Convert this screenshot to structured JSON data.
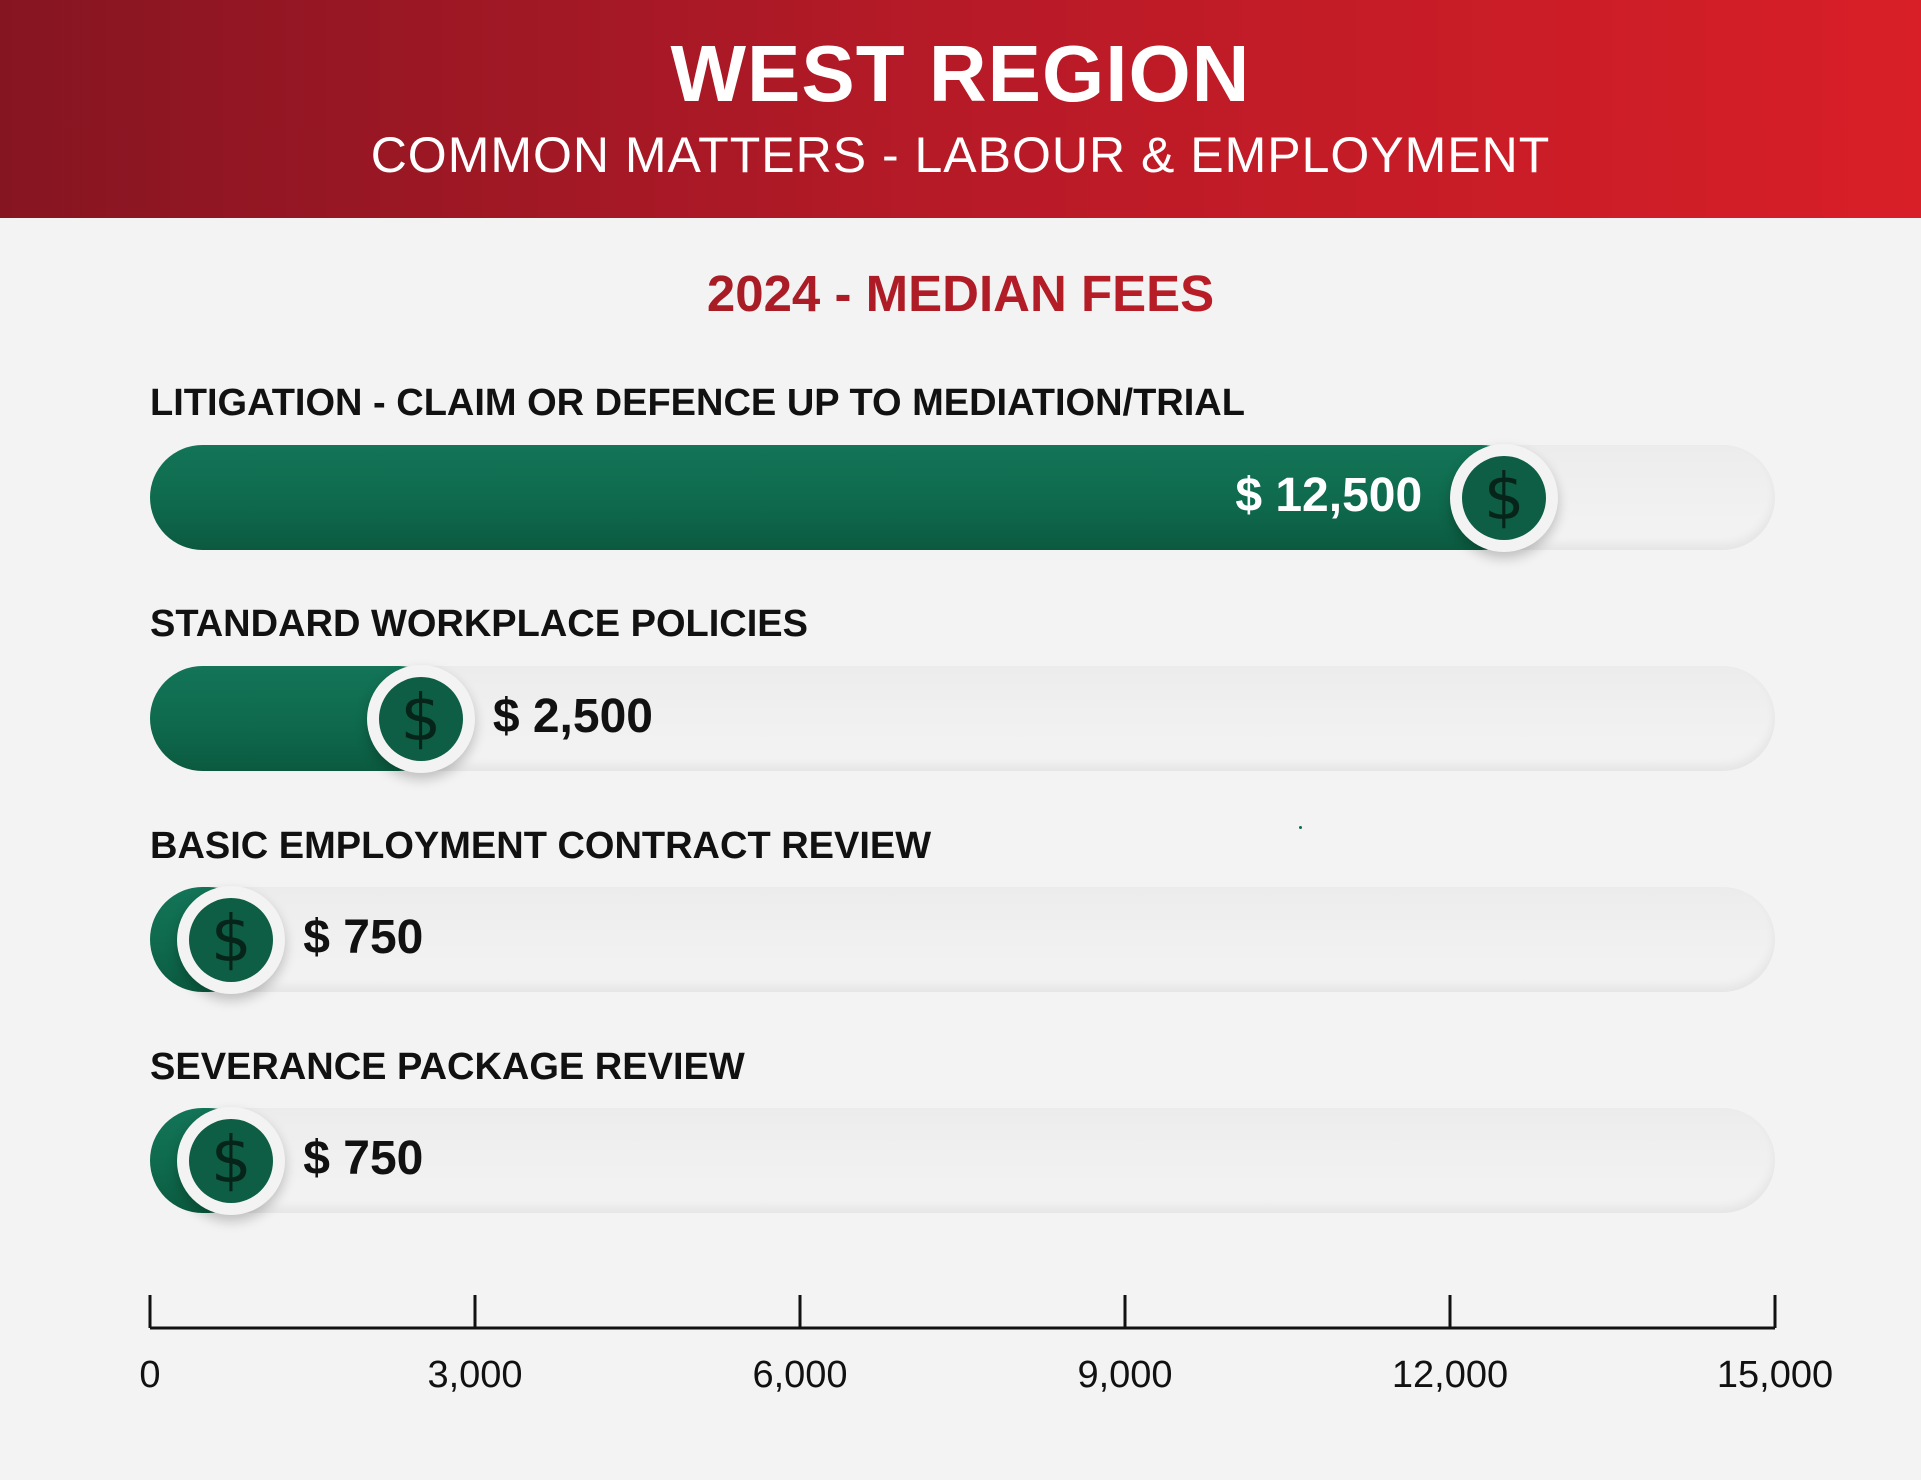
{
  "header": {
    "title": "WEST REGION",
    "subtitle": "COMMON MATTERS - LABOUR & EMPLOYMENT"
  },
  "section_title": "2024 - MEDIAN FEES",
  "colors": {
    "header_start": "#861522",
    "header_end": "#d81f27",
    "bar_green": "#0f6a4d",
    "coin_green": "#0d5e44",
    "background": "#f3f3f3"
  },
  "icons": {
    "bar_end": "dollar-coin-icon"
  },
  "chart_data": {
    "type": "bar",
    "orientation": "horizontal",
    "categories": [
      "LITIGATION - CLAIM OR DEFENCE UP TO MEDIATION/TRIAL",
      "STANDARD WORKPLACE POLICIES",
      "BASIC EMPLOYMENT CONTRACT REVIEW",
      "SEVERANCE PACKAGE REVIEW"
    ],
    "values": [
      12500,
      2500,
      750,
      750
    ],
    "value_labels": [
      "$ 12,500",
      "$ 2,500",
      "$ 750",
      "$ 750"
    ],
    "title": "2024 - MEDIAN FEES",
    "xlim": [
      0,
      15000
    ],
    "xticks": [
      0,
      3000,
      6000,
      9000,
      12000,
      15000
    ],
    "xtick_labels": [
      "0",
      "3,000",
      "6,000",
      "9,000",
      "12,000",
      "15,000"
    ],
    "grid": false,
    "legend": "none"
  }
}
